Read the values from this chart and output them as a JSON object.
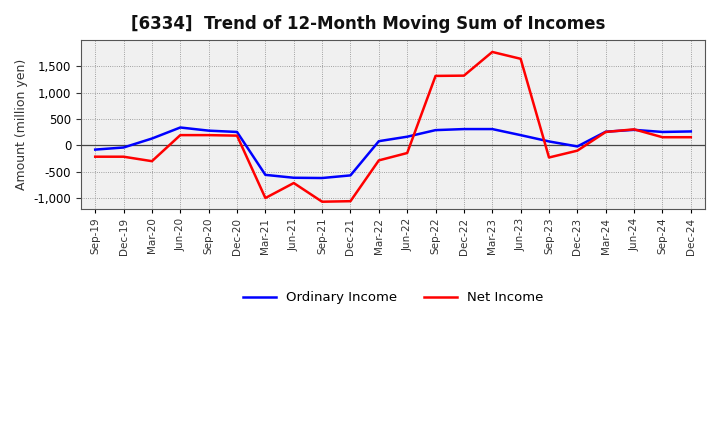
{
  "title": "[6334]  Trend of 12-Month Moving Sum of Incomes",
  "ylabel": "Amount (million yen)",
  "labels": [
    "Sep-19",
    "Dec-19",
    "Mar-20",
    "Jun-20",
    "Sep-20",
    "Dec-20",
    "Mar-21",
    "Jun-21",
    "Sep-21",
    "Dec-21",
    "Mar-22",
    "Jun-22",
    "Sep-22",
    "Dec-22",
    "Mar-23",
    "Jun-23",
    "Sep-23",
    "Dec-23",
    "Mar-24",
    "Jun-24",
    "Sep-24",
    "Dec-24"
  ],
  "ordinary_income": [
    -80,
    -40,
    130,
    340,
    280,
    255,
    -560,
    -615,
    -620,
    -570,
    80,
    165,
    290,
    310,
    310,
    195,
    75,
    -20,
    260,
    295,
    255,
    265
  ],
  "net_income": [
    -215,
    -215,
    -300,
    195,
    195,
    185,
    -1000,
    -715,
    -1070,
    -1060,
    -285,
    -145,
    1320,
    1325,
    1775,
    1645,
    -230,
    -100,
    255,
    305,
    155,
    155
  ],
  "ordinary_color": "#0000ff",
  "net_color": "#ff0000",
  "ylim": [
    -1200,
    2000
  ],
  "yticks": [
    -1000,
    -500,
    0,
    500,
    1000,
    1500
  ],
  "background_color": "#ffffff",
  "plot_bg_color": "#f0f0f0",
  "grid_color": "#888888"
}
